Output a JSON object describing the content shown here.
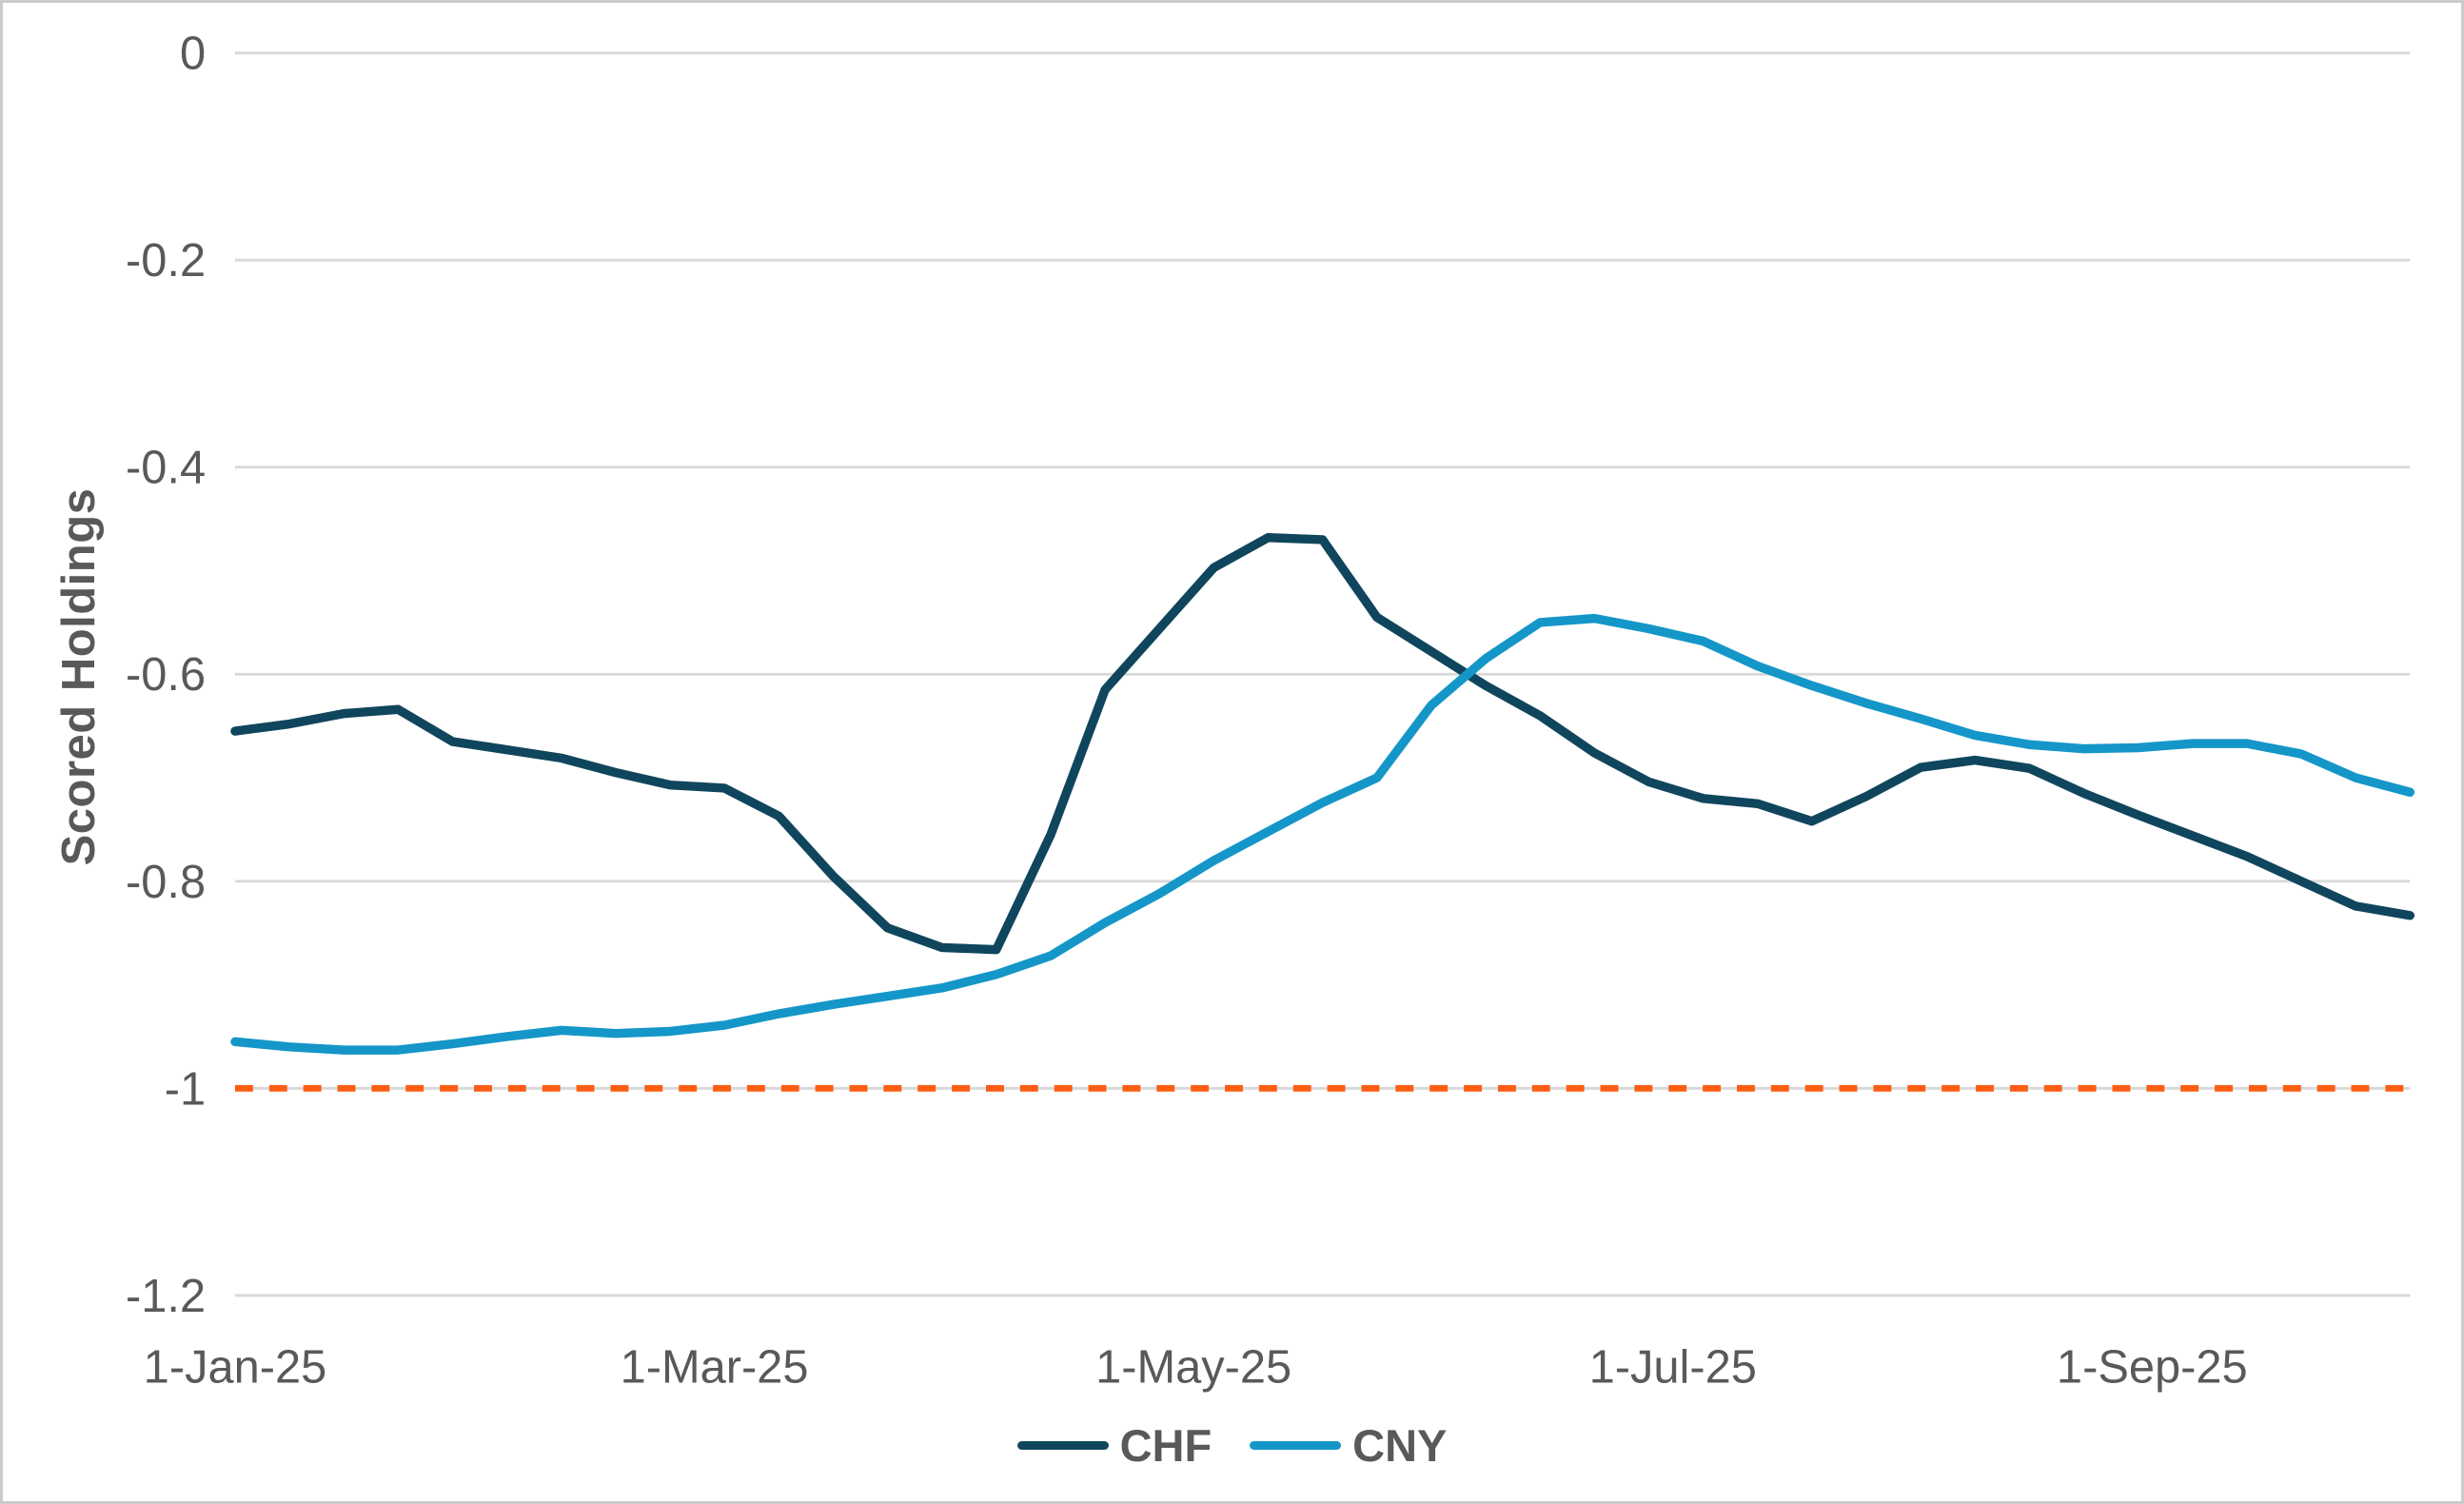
{
  "chart_data": {
    "type": "line",
    "title": "",
    "ylabel": "Scored Holdings",
    "xlabel": "",
    "ylim": [
      -1.2,
      0
    ],
    "grid": "horizontal",
    "legend_position": "bottom-center",
    "y_ticks": {
      "values": [
        0,
        -0.2,
        -0.4,
        -0.6,
        -0.8,
        -1,
        -1.2
      ],
      "labels": [
        "0",
        "-0.2",
        "-0.4",
        "-0.6",
        "-0.8",
        "-1",
        "-1.2"
      ]
    },
    "x_ticks": [
      "1-Jan-25",
      "1-Mar-25",
      "1-May-25",
      "1-Jul-25",
      "1-Sep-25"
    ],
    "x": [
      "1-Jan-25",
      "8-Jan-25",
      "15-Jan-25",
      "22-Jan-25",
      "29-Jan-25",
      "5-Feb-25",
      "12-Feb-25",
      "19-Feb-25",
      "26-Feb-25",
      "5-Mar-25",
      "12-Mar-25",
      "19-Mar-25",
      "26-Mar-25",
      "2-Apr-25",
      "9-Apr-25",
      "16-Apr-25",
      "23-Apr-25",
      "30-Apr-25",
      "7-May-25",
      "14-May-25",
      "21-May-25",
      "28-May-25",
      "4-Jun-25",
      "11-Jun-25",
      "18-Jun-25",
      "25-Jun-25",
      "2-Jul-25",
      "9-Jul-25",
      "16-Jul-25",
      "23-Jul-25",
      "30-Jul-25",
      "6-Aug-25",
      "13-Aug-25",
      "20-Aug-25",
      "27-Aug-25",
      "3-Sep-25",
      "10-Sep-25",
      "17-Sep-25",
      "24-Sep-25",
      "1-Oct-25",
      "8-Oct-25"
    ],
    "series": [
      {
        "name": "CHF",
        "color": "#10465D",
        "values": [
          -0.655,
          -0.648,
          -0.638,
          -0.634,
          -0.665,
          -0.673,
          -0.681,
          -0.695,
          -0.707,
          -0.71,
          -0.737,
          -0.795,
          -0.845,
          -0.864,
          -0.866,
          -0.755,
          -0.615,
          -0.556,
          -0.497,
          -0.468,
          -0.47,
          -0.545,
          -0.578,
          -0.611,
          -0.64,
          -0.676,
          -0.704,
          -0.72,
          -0.725,
          -0.742,
          -0.718,
          -0.69,
          -0.683,
          -0.691,
          -0.715,
          -0.736,
          -0.756,
          -0.776,
          -0.8,
          -0.824,
          -0.833
        ]
      },
      {
        "name": "CNY",
        "color": "#1596C8",
        "values": [
          -0.955,
          -0.96,
          -0.963,
          -0.963,
          -0.957,
          -0.95,
          -0.944,
          -0.947,
          -0.945,
          -0.939,
          -0.928,
          -0.919,
          -0.911,
          -0.903,
          -0.89,
          -0.872,
          -0.84,
          -0.812,
          -0.78,
          -0.752,
          -0.724,
          -0.7,
          -0.63,
          -0.585,
          -0.55,
          -0.546,
          -0.556,
          -0.568,
          -0.592,
          -0.611,
          -0.628,
          -0.643,
          -0.659,
          -0.668,
          -0.672,
          -0.671,
          -0.667,
          -0.667,
          -0.677,
          -0.7,
          -0.714
        ]
      }
    ],
    "reference_line": {
      "value": -1,
      "style": "dashed",
      "color": "#FB5E13"
    },
    "gridline_color": "#D9D9D9",
    "text_color": "#595959"
  },
  "legend": {
    "items": [
      {
        "label": "CHF"
      },
      {
        "label": "CNY"
      }
    ]
  }
}
